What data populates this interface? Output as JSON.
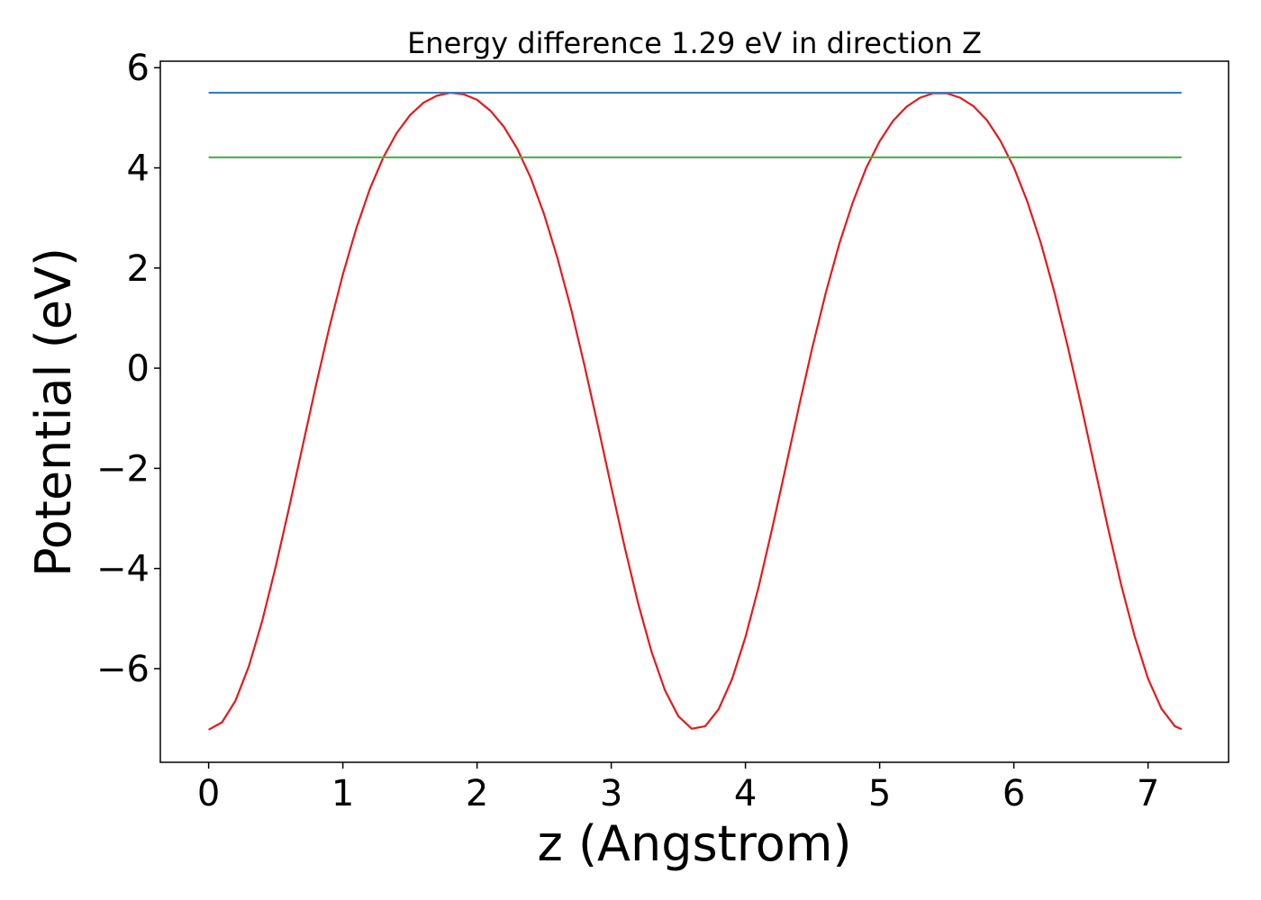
{
  "chart_data": {
    "type": "line",
    "title": "Energy difference 1.29 eV in direction Z",
    "xlabel": "z (Angstrom)",
    "ylabel": "Potential (eV)",
    "xlim": [
      -0.36,
      7.6
    ],
    "ylim": [
      -7.87,
      6.13
    ],
    "xticks": [
      0,
      1,
      2,
      3,
      4,
      5,
      6,
      7
    ],
    "xtick_labels": [
      "0",
      "1",
      "2",
      "3",
      "4",
      "5",
      "6",
      "7"
    ],
    "yticks": [
      -6,
      -4,
      -2,
      0,
      2,
      4,
      6
    ],
    "ytick_labels": [
      "−6",
      "−4",
      "−2",
      "0",
      "2",
      "4",
      "6"
    ],
    "grid": false,
    "legend": "none",
    "series": [
      {
        "color": "#e41a1c",
        "x": [
          0,
          0.1,
          0.2,
          0.3,
          0.4,
          0.5,
          0.6,
          0.7,
          0.8,
          0.9,
          1.0,
          1.1,
          1.2,
          1.3,
          1.4,
          1.5,
          1.6,
          1.7,
          1.8,
          1.9,
          2.0,
          2.1,
          2.2,
          2.3,
          2.4,
          2.5,
          2.6,
          2.7,
          2.8,
          2.9,
          3.0,
          3.1,
          3.2,
          3.3,
          3.4,
          3.5,
          3.6,
          3.7,
          3.8,
          3.9,
          4.0,
          4.1,
          4.2,
          4.3,
          4.4,
          4.5,
          4.6,
          4.7,
          4.8,
          4.9,
          5.0,
          5.1,
          5.2,
          5.3,
          5.4,
          5.5,
          5.6,
          5.7,
          5.8,
          5.9,
          6.0,
          6.1,
          6.2,
          6.3,
          6.4,
          6.5,
          6.6,
          6.7,
          6.8,
          6.9,
          7.0,
          7.1,
          7.2,
          7.25
        ],
        "y": [
          -7.22,
          -7.07,
          -6.64,
          -5.95,
          -5.04,
          -3.96,
          -2.78,
          -1.56,
          -0.34,
          0.82,
          1.87,
          2.79,
          3.57,
          4.2,
          4.69,
          5.05,
          5.3,
          5.44,
          5.5,
          5.47,
          5.36,
          5.14,
          4.82,
          4.38,
          3.8,
          3.07,
          2.19,
          1.19,
          0.06,
          -1.14,
          -2.37,
          -3.57,
          -4.69,
          -5.66,
          -6.43,
          -6.95,
          -7.2,
          -7.15,
          -6.81,
          -6.21,
          -5.37,
          -4.35,
          -3.19,
          -1.98,
          -0.75,
          0.43,
          1.52,
          2.49,
          3.31,
          4.0,
          4.53,
          4.94,
          5.22,
          5.4,
          5.49,
          5.49,
          5.4,
          5.23,
          4.95,
          4.54,
          4.01,
          3.33,
          2.51,
          1.54,
          0.45,
          -0.72,
          -1.95,
          -3.17,
          -4.33,
          -5.35,
          -6.2,
          -6.8,
          -7.15,
          -7.21
        ]
      },
      {
        "color": "#377eb8",
        "x": [
          0,
          7.25
        ],
        "y": [
          5.5,
          5.5
        ]
      },
      {
        "color": "#4daf4a",
        "x": [
          0,
          7.25
        ],
        "y": [
          4.21,
          4.21
        ]
      }
    ]
  }
}
